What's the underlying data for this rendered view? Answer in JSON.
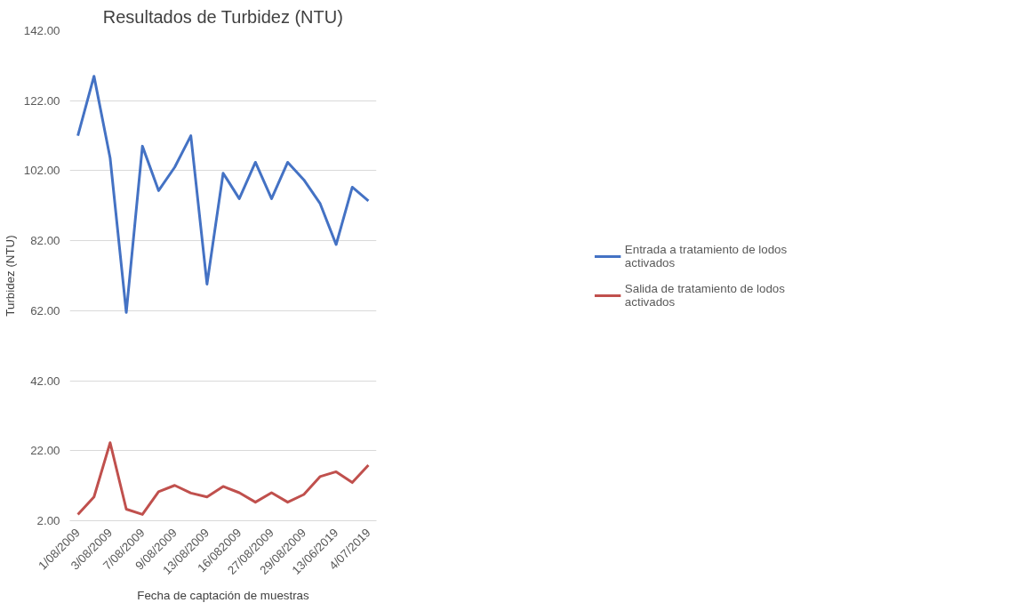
{
  "chart_data": {
    "type": "line",
    "title": "Resultados de Turbidez (NTU)",
    "xlabel": "Fecha de captación de muestras",
    "ylabel": "Turbidez (NTU)",
    "categories": [
      "1/08/2009",
      null,
      "3/08/2009",
      null,
      "7/08/2009",
      null,
      "9/08/2009",
      null,
      "13/08/2009",
      null,
      "16/082009",
      null,
      "27/08/2009",
      null,
      "29/08/2009",
      null,
      "13/06/2019",
      null,
      "4/07/2019"
    ],
    "series": [
      {
        "name": "Entrada a tratamiento de lodos activados",
        "color": "#4472c4",
        "values": [
          112,
          129,
          105.6,
          61.5,
          109,
          96.3,
          103,
          112,
          69.6,
          101.3,
          94,
          104.4,
          94,
          104.4,
          99.4,
          92.7,
          80.9,
          97.3,
          93.4
        ]
      },
      {
        "name": "Salida de tratamiento de lodos activados",
        "color": "#c0504d",
        "values": [
          3.8,
          8.8,
          24.3,
          5.3,
          3.8,
          10.3,
          12.1,
          9.9,
          8.8,
          11.8,
          10,
          7.3,
          10,
          7.3,
          9.5,
          14.6,
          16,
          12.9,
          17.9
        ]
      }
    ],
    "ylim": [
      2,
      142
    ],
    "yticks": [
      {
        "value": 2,
        "label": "2.00"
      },
      {
        "value": 22,
        "label": "22.00"
      },
      {
        "value": 42,
        "label": "42.00"
      },
      {
        "value": 62,
        "label": "62.00"
      },
      {
        "value": 82,
        "label": "82.00"
      },
      {
        "value": 102,
        "label": "102.00"
      },
      {
        "value": 122,
        "label": "122.00"
      },
      {
        "value": 142,
        "label": "142.00"
      }
    ],
    "grid": "y",
    "legend": "right",
    "marker": "none",
    "line_style": "solid"
  }
}
